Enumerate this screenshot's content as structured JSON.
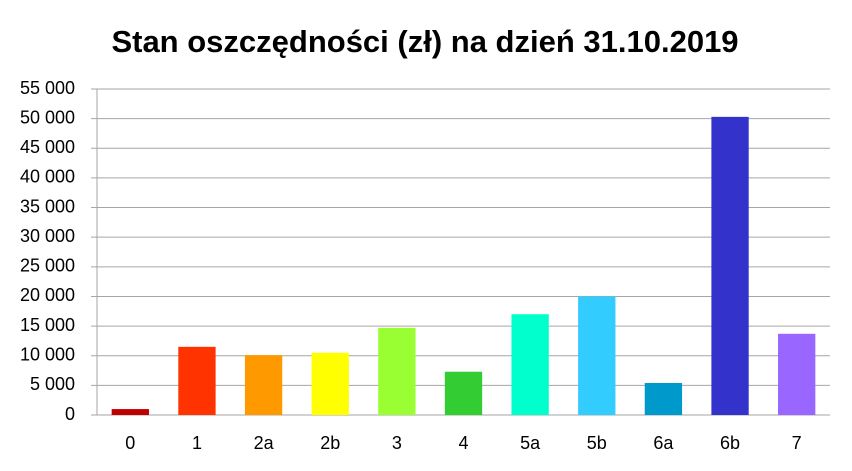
{
  "chart_data": {
    "type": "bar",
    "title": "Stan oszczędności (zł) na dzień 31.10.2019",
    "categories": [
      "0",
      "1",
      "2a",
      "2b",
      "3",
      "4",
      "5a",
      "5b",
      "6a",
      "6b",
      "7"
    ],
    "values": [
      1000,
      11500,
      10100,
      10500,
      14700,
      7300,
      17000,
      20000,
      5400,
      50300,
      13700
    ],
    "colors": [
      "#c00000",
      "#ff3300",
      "#ff9900",
      "#ffff00",
      "#99ff33",
      "#33cc33",
      "#00ffcc",
      "#33ccff",
      "#0099cc",
      "#3333cc",
      "#9966ff"
    ],
    "ylim": [
      0,
      55000
    ],
    "yticks": [
      0,
      {
        "value": 5000,
        "label": "5 000"
      },
      {
        "value": 10000,
        "label": "10 000"
      },
      {
        "value": 15000,
        "label": "15 000"
      },
      {
        "value": 20000,
        "label": "20 000"
      },
      {
        "value": 25000,
        "label": "25 000"
      },
      {
        "value": 30000,
        "label": "30 000"
      },
      {
        "value": 35000,
        "label": "35 000"
      },
      {
        "value": 40000,
        "label": "40 000"
      },
      {
        "value": 45000,
        "label": "45 000"
      },
      {
        "value": 50000,
        "label": "50 000"
      },
      {
        "value": 55000,
        "label": "55 000"
      }
    ],
    "grid": true
  }
}
